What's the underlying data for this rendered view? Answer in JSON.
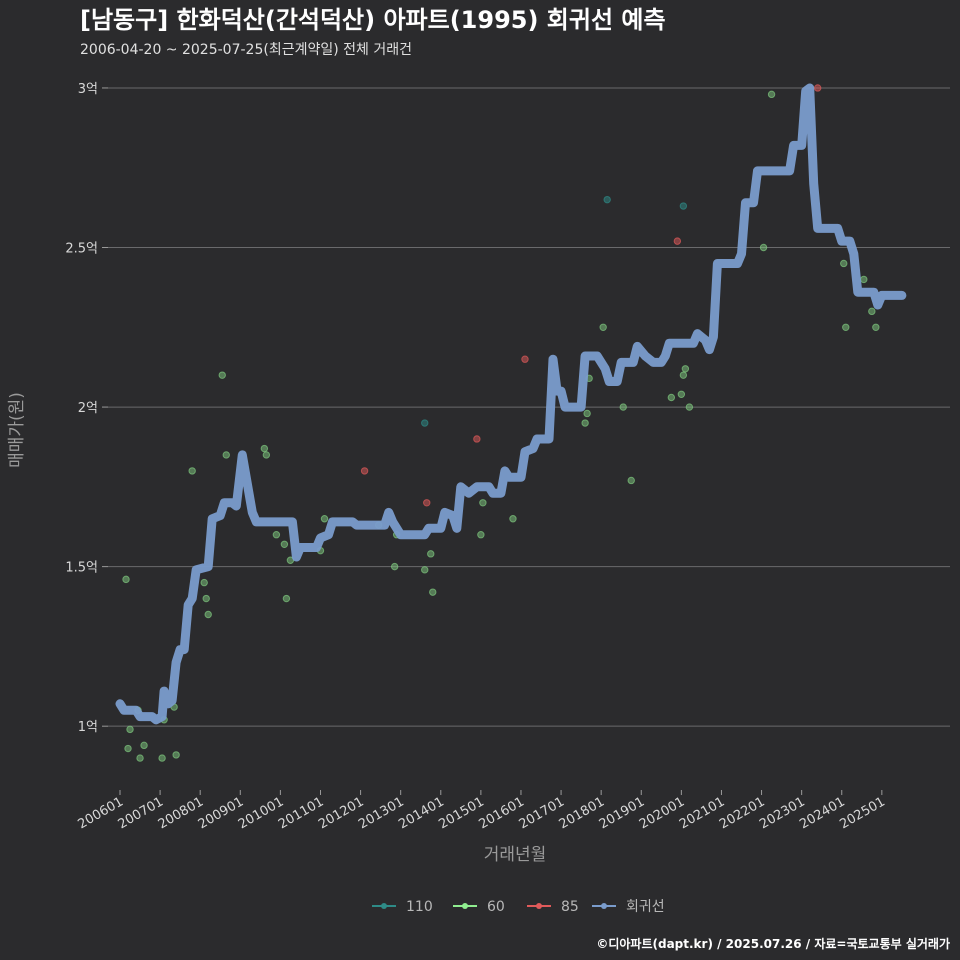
{
  "chart_data": {
    "type": "scatter",
    "title": "[남동구] 한화덕산(간석덕산) 아파트(1995) 회귀선 예측",
    "subtitle": "2006-04-20 ~ 2025-07-25(최근계약일) 전체 거래건",
    "xlabel": "거래년월",
    "ylabel": "매매가(원)",
    "caption": "©디아파트(dapt.kr) / 2025.07.26 / 자료=국토교통부 실거래가",
    "x_range": [
      2006.0,
      2026.6
    ],
    "ylim": [
      0.8,
      3.05
    ],
    "x_ticks": [
      {
        "value": 2006.0,
        "label": "200601"
      },
      {
        "value": 2007.0,
        "label": "200701"
      },
      {
        "value": 2008.0,
        "label": "200801"
      },
      {
        "value": 2009.0,
        "label": "200901"
      },
      {
        "value": 2010.0,
        "label": "201001"
      },
      {
        "value": 2011.0,
        "label": "201101"
      },
      {
        "value": 2012.0,
        "label": "201201"
      },
      {
        "value": 2013.0,
        "label": "201301"
      },
      {
        "value": 2014.0,
        "label": "201401"
      },
      {
        "value": 2015.0,
        "label": "201501"
      },
      {
        "value": 2016.0,
        "label": "201601"
      },
      {
        "value": 2017.0,
        "label": "201701"
      },
      {
        "value": 2018.0,
        "label": "201801"
      },
      {
        "value": 2019.0,
        "label": "201901"
      },
      {
        "value": 2020.0,
        "label": "202001"
      },
      {
        "value": 2021.0,
        "label": "202101"
      },
      {
        "value": 2022.0,
        "label": "202201"
      },
      {
        "value": 2023.0,
        "label": "202301"
      },
      {
        "value": 2024.0,
        "label": "202401"
      },
      {
        "value": 2025.0,
        "label": "202501"
      }
    ],
    "y_ticks": [
      {
        "value": 1.0,
        "label": "1억"
      },
      {
        "value": 1.5,
        "label": "1.5억"
      },
      {
        "value": 2.0,
        "label": "2억"
      },
      {
        "value": 2.5,
        "label": "2.5억"
      },
      {
        "value": 3.0,
        "label": "3억"
      }
    ],
    "legend": [
      {
        "name": "110",
        "color": "#2e8b87"
      },
      {
        "name": "60",
        "color": "#90ee90"
      },
      {
        "name": "85",
        "color": "#e05a5a"
      },
      {
        "name": "회귀선",
        "color": "#7a9ccc"
      }
    ],
    "series": [
      {
        "name": "60",
        "color": "#7fc97f",
        "points": [
          [
            2006.15,
            1.46
          ],
          [
            2006.2,
            0.93
          ],
          [
            2006.25,
            0.99
          ],
          [
            2006.45,
            1.05
          ],
          [
            2006.5,
            0.9
          ],
          [
            2006.6,
            0.94
          ],
          [
            2007.05,
            0.9
          ],
          [
            2007.1,
            1.02
          ],
          [
            2007.35,
            1.06
          ],
          [
            2007.4,
            0.91
          ],
          [
            2007.8,
            1.8
          ],
          [
            2008.1,
            1.45
          ],
          [
            2008.15,
            1.4
          ],
          [
            2008.2,
            1.35
          ],
          [
            2008.55,
            2.1
          ],
          [
            2008.65,
            1.85
          ],
          [
            2009.6,
            1.87
          ],
          [
            2009.65,
            1.85
          ],
          [
            2009.9,
            1.6
          ],
          [
            2010.1,
            1.57
          ],
          [
            2010.15,
            1.4
          ],
          [
            2010.25,
            1.52
          ],
          [
            2011.0,
            1.55
          ],
          [
            2011.1,
            1.65
          ],
          [
            2012.45,
            1.63
          ],
          [
            2012.85,
            1.5
          ],
          [
            2012.9,
            1.6
          ],
          [
            2013.6,
            1.49
          ],
          [
            2013.75,
            1.54
          ],
          [
            2013.8,
            1.42
          ],
          [
            2015.0,
            1.6
          ],
          [
            2015.05,
            1.7
          ],
          [
            2015.8,
            1.65
          ],
          [
            2017.6,
            1.95
          ],
          [
            2017.65,
            1.98
          ],
          [
            2017.7,
            2.09
          ],
          [
            2018.05,
            2.25
          ],
          [
            2018.55,
            2.0
          ],
          [
            2018.75,
            1.77
          ],
          [
            2019.75,
            2.03
          ],
          [
            2020.0,
            2.04
          ],
          [
            2020.05,
            2.1
          ],
          [
            2020.1,
            2.12
          ],
          [
            2020.2,
            2.0
          ],
          [
            2022.05,
            2.5
          ],
          [
            2022.25,
            2.98
          ],
          [
            2024.05,
            2.45
          ],
          [
            2024.55,
            2.4
          ],
          [
            2024.75,
            2.3
          ],
          [
            2024.85,
            2.25
          ],
          [
            2024.1,
            2.25
          ]
        ]
      },
      {
        "name": "110",
        "color": "#2e8b87",
        "points": [
          [
            2013.6,
            1.95
          ],
          [
            2018.15,
            2.65
          ],
          [
            2020.05,
            2.63
          ]
        ]
      },
      {
        "name": "85",
        "color": "#e05a5a",
        "points": [
          [
            2012.1,
            1.8
          ],
          [
            2013.65,
            1.7
          ],
          [
            2014.9,
            1.9
          ],
          [
            2016.1,
            2.15
          ],
          [
            2019.9,
            2.52
          ],
          [
            2023.4,
            3.0
          ]
        ]
      }
    ],
    "regression": {
      "name": "회귀선",
      "color": "#7a9ccc",
      "points": [
        [
          2006.0,
          1.07
        ],
        [
          2006.1,
          1.05
        ],
        [
          2006.4,
          1.05
        ],
        [
          2006.5,
          1.03
        ],
        [
          2006.8,
          1.03
        ],
        [
          2006.9,
          1.02
        ],
        [
          2007.05,
          1.03
        ],
        [
          2007.1,
          1.11
        ],
        [
          2007.2,
          1.07
        ],
        [
          2007.3,
          1.08
        ],
        [
          2007.4,
          1.2
        ],
        [
          2007.5,
          1.24
        ],
        [
          2007.6,
          1.24
        ],
        [
          2007.7,
          1.38
        ],
        [
          2007.8,
          1.4
        ],
        [
          2007.9,
          1.49
        ],
        [
          2008.2,
          1.5
        ],
        [
          2008.3,
          1.65
        ],
        [
          2008.5,
          1.66
        ],
        [
          2008.6,
          1.7
        ],
        [
          2008.8,
          1.7
        ],
        [
          2008.9,
          1.69
        ],
        [
          2009.05,
          1.85
        ],
        [
          2009.3,
          1.67
        ],
        [
          2009.4,
          1.64
        ],
        [
          2010.3,
          1.64
        ],
        [
          2010.4,
          1.53
        ],
        [
          2010.5,
          1.56
        ],
        [
          2010.9,
          1.56
        ],
        [
          2011.0,
          1.59
        ],
        [
          2011.2,
          1.6
        ],
        [
          2011.3,
          1.64
        ],
        [
          2011.8,
          1.64
        ],
        [
          2011.9,
          1.63
        ],
        [
          2012.6,
          1.63
        ],
        [
          2012.7,
          1.67
        ],
        [
          2012.8,
          1.64
        ],
        [
          2013.0,
          1.6
        ],
        [
          2013.6,
          1.6
        ],
        [
          2013.7,
          1.62
        ],
        [
          2014.0,
          1.62
        ],
        [
          2014.1,
          1.67
        ],
        [
          2014.3,
          1.66
        ],
        [
          2014.4,
          1.62
        ],
        [
          2014.5,
          1.75
        ],
        [
          2014.7,
          1.73
        ],
        [
          2014.9,
          1.75
        ],
        [
          2015.2,
          1.75
        ],
        [
          2015.3,
          1.73
        ],
        [
          2015.5,
          1.73
        ],
        [
          2015.6,
          1.8
        ],
        [
          2015.7,
          1.78
        ],
        [
          2016.0,
          1.78
        ],
        [
          2016.1,
          1.86
        ],
        [
          2016.3,
          1.87
        ],
        [
          2016.4,
          1.9
        ],
        [
          2016.7,
          1.9
        ],
        [
          2016.8,
          2.15
        ],
        [
          2016.9,
          2.05
        ],
        [
          2017.0,
          2.05
        ],
        [
          2017.1,
          2.0
        ],
        [
          2017.5,
          2.0
        ],
        [
          2017.6,
          2.16
        ],
        [
          2017.9,
          2.16
        ],
        [
          2018.0,
          2.14
        ],
        [
          2018.1,
          2.12
        ],
        [
          2018.2,
          2.08
        ],
        [
          2018.4,
          2.08
        ],
        [
          2018.5,
          2.14
        ],
        [
          2018.8,
          2.14
        ],
        [
          2018.9,
          2.19
        ],
        [
          2019.1,
          2.16
        ],
        [
          2019.3,
          2.14
        ],
        [
          2019.5,
          2.14
        ],
        [
          2019.6,
          2.16
        ],
        [
          2019.7,
          2.2
        ],
        [
          2020.3,
          2.2
        ],
        [
          2020.4,
          2.23
        ],
        [
          2020.6,
          2.21
        ],
        [
          2020.7,
          2.18
        ],
        [
          2020.8,
          2.22
        ],
        [
          2020.9,
          2.45
        ],
        [
          2021.4,
          2.45
        ],
        [
          2021.5,
          2.48
        ],
        [
          2021.6,
          2.64
        ],
        [
          2021.8,
          2.64
        ],
        [
          2021.9,
          2.74
        ],
        [
          2022.7,
          2.74
        ],
        [
          2022.8,
          2.82
        ],
        [
          2023.0,
          2.82
        ],
        [
          2023.1,
          2.99
        ],
        [
          2023.2,
          3.0
        ],
        [
          2023.3,
          2.7
        ],
        [
          2023.4,
          2.56
        ],
        [
          2023.9,
          2.56
        ],
        [
          2024.0,
          2.52
        ],
        [
          2024.2,
          2.52
        ],
        [
          2024.3,
          2.48
        ],
        [
          2024.4,
          2.36
        ],
        [
          2024.8,
          2.36
        ],
        [
          2024.9,
          2.32
        ],
        [
          2025.0,
          2.35
        ],
        [
          2025.5,
          2.35
        ]
      ]
    }
  }
}
